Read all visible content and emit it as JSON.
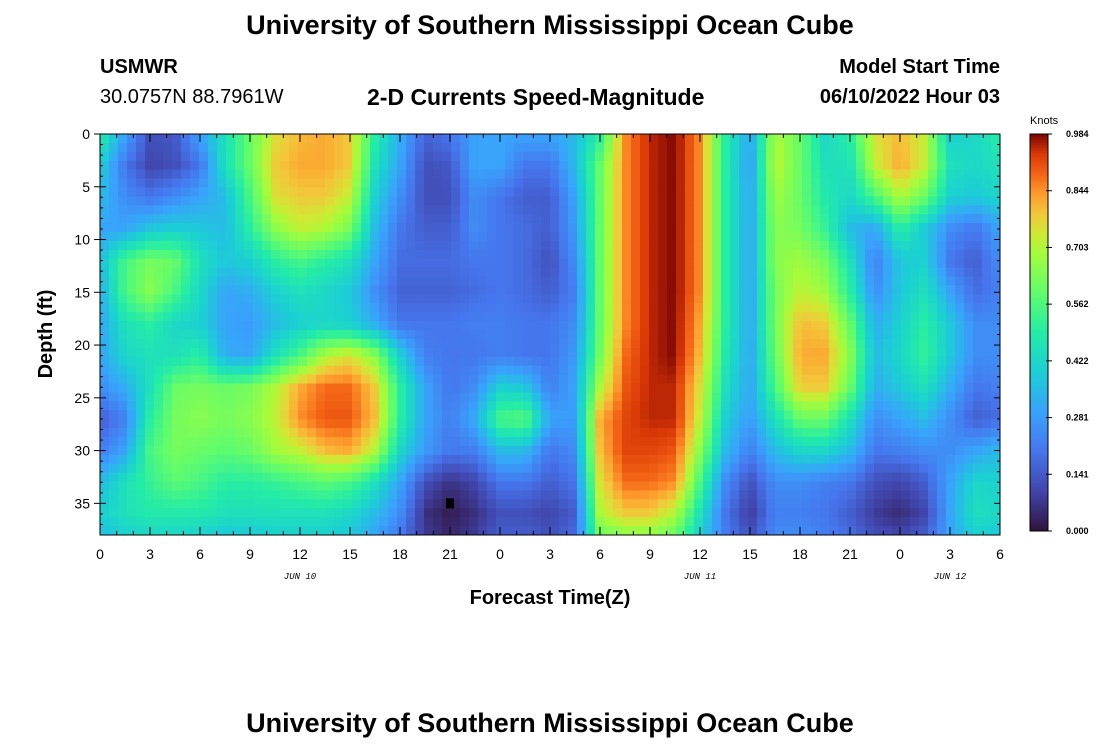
{
  "header": {
    "title": "University of Southern Mississippi Ocean Cube",
    "station": "USMWR",
    "coordinates": "30.0757N  88.7961W",
    "plot_title": "2-D Currents Speed-Magnitude",
    "model_label": "Model Start Time",
    "model_time": "06/10/2022 Hour 03"
  },
  "footer": {
    "title": "University of Southern Mississippi Ocean Cube"
  },
  "chart_data": {
    "type": "heatmap",
    "title": "2-D Currents Speed-Magnitude",
    "xlabel": "Forecast Time(Z)",
    "ylabel": "Depth (ft)",
    "x_hours_range": [
      0,
      54
    ],
    "x_tick_hours": [
      0,
      3,
      6,
      9,
      12,
      15,
      18,
      21,
      24,
      27,
      30,
      33,
      36,
      39,
      42,
      45,
      48,
      51,
      54
    ],
    "x_tick_labels": [
      "0",
      "3",
      "6",
      "9",
      "12",
      "15",
      "18",
      "21",
      "0",
      "3",
      "6",
      "9",
      "12",
      "15",
      "18",
      "21",
      "0",
      "3",
      "6"
    ],
    "date_labels": [
      {
        "text": "JUN 10",
        "hour": 12
      },
      {
        "text": "JUN 11",
        "hour": 36
      },
      {
        "text": "JUN 12",
        "hour": 51
      }
    ],
    "y_range": [
      0,
      38
    ],
    "y_inverted": true,
    "y_ticks": [
      0,
      5,
      10,
      15,
      20,
      25,
      30,
      35
    ],
    "y_tick_labels": [
      "0",
      "5",
      "10",
      "15",
      "20",
      "25",
      "30",
      "35"
    ],
    "colorbar": {
      "unit": "Knots",
      "min": 0.0,
      "max": 0.984,
      "tick_labels": [
        "0.000",
        "0.141",
        "0.281",
        "0.422",
        "0.562",
        "0.703",
        "0.844",
        "0.984"
      ]
    },
    "field": {
      "columns_hour": [
        0,
        1.5,
        3,
        4.5,
        6,
        7.5,
        9,
        10.5,
        12,
        13.5,
        15,
        16.5,
        18,
        19.5,
        21,
        22.5,
        24,
        25.5,
        27,
        28.5,
        30,
        31.5,
        33,
        34.5,
        36,
        37.5,
        39,
        40.5,
        42,
        43.5,
        45,
        46.5,
        48,
        49.5,
        51,
        52.5,
        54
      ],
      "rows_depth": [
        0,
        3,
        6,
        9,
        12,
        15,
        18,
        21,
        24,
        27,
        30,
        33,
        36,
        38
      ],
      "speed_knots": [
        [
          0.5,
          0.3,
          0.12,
          0.14,
          0.3,
          0.45,
          0.6,
          0.75,
          0.8,
          0.82,
          0.78,
          0.5,
          0.32,
          0.16,
          0.2,
          0.3,
          0.3,
          0.3,
          0.3,
          0.35,
          0.5,
          0.85,
          0.95,
          0.98,
          0.85,
          0.5,
          0.3,
          0.7,
          0.6,
          0.42,
          0.5,
          0.75,
          0.8,
          0.72,
          0.4,
          0.42,
          0.5
        ],
        [
          0.4,
          0.2,
          0.1,
          0.12,
          0.2,
          0.45,
          0.6,
          0.78,
          0.82,
          0.82,
          0.78,
          0.45,
          0.3,
          0.12,
          0.14,
          0.3,
          0.3,
          0.2,
          0.2,
          0.35,
          0.6,
          0.85,
          0.95,
          0.98,
          0.85,
          0.5,
          0.28,
          0.72,
          0.6,
          0.45,
          0.45,
          0.72,
          0.82,
          0.72,
          0.45,
          0.42,
          0.45
        ],
        [
          0.35,
          0.25,
          0.2,
          0.25,
          0.3,
          0.35,
          0.55,
          0.75,
          0.78,
          0.78,
          0.72,
          0.4,
          0.25,
          0.12,
          0.12,
          0.25,
          0.2,
          0.15,
          0.15,
          0.3,
          0.6,
          0.85,
          0.95,
          0.98,
          0.85,
          0.5,
          0.3,
          0.68,
          0.6,
          0.48,
          0.42,
          0.55,
          0.7,
          0.6,
          0.4,
          0.38,
          0.42
        ],
        [
          0.3,
          0.3,
          0.38,
          0.4,
          0.38,
          0.35,
          0.5,
          0.65,
          0.72,
          0.7,
          0.62,
          0.35,
          0.2,
          0.15,
          0.15,
          0.25,
          0.2,
          0.18,
          0.15,
          0.28,
          0.6,
          0.85,
          0.95,
          0.98,
          0.85,
          0.5,
          0.3,
          0.65,
          0.62,
          0.52,
          0.35,
          0.3,
          0.5,
          0.38,
          0.25,
          0.2,
          0.3
        ],
        [
          0.35,
          0.55,
          0.62,
          0.6,
          0.45,
          0.38,
          0.4,
          0.5,
          0.55,
          0.5,
          0.45,
          0.3,
          0.18,
          0.18,
          0.18,
          0.2,
          0.2,
          0.18,
          0.12,
          0.25,
          0.6,
          0.85,
          0.95,
          0.98,
          0.85,
          0.5,
          0.3,
          0.65,
          0.68,
          0.62,
          0.45,
          0.22,
          0.38,
          0.4,
          0.2,
          0.15,
          0.25
        ],
        [
          0.32,
          0.55,
          0.65,
          0.55,
          0.42,
          0.3,
          0.32,
          0.4,
          0.45,
          0.42,
          0.38,
          0.25,
          0.16,
          0.16,
          0.16,
          0.18,
          0.2,
          0.18,
          0.15,
          0.22,
          0.6,
          0.85,
          0.95,
          0.98,
          0.85,
          0.5,
          0.3,
          0.62,
          0.72,
          0.68,
          0.5,
          0.25,
          0.38,
          0.45,
          0.3,
          0.18,
          0.22
        ],
        [
          0.3,
          0.45,
          0.5,
          0.42,
          0.4,
          0.3,
          0.28,
          0.35,
          0.4,
          0.42,
          0.4,
          0.32,
          0.2,
          0.2,
          0.2,
          0.22,
          0.22,
          0.2,
          0.2,
          0.25,
          0.6,
          0.85,
          0.95,
          0.98,
          0.82,
          0.5,
          0.3,
          0.62,
          0.8,
          0.78,
          0.6,
          0.32,
          0.4,
          0.5,
          0.38,
          0.25,
          0.25
        ],
        [
          0.3,
          0.42,
          0.45,
          0.45,
          0.5,
          0.32,
          0.3,
          0.45,
          0.55,
          0.7,
          0.75,
          0.65,
          0.4,
          0.22,
          0.2,
          0.2,
          0.22,
          0.2,
          0.2,
          0.28,
          0.62,
          0.88,
          0.95,
          0.98,
          0.8,
          0.48,
          0.3,
          0.6,
          0.82,
          0.82,
          0.65,
          0.35,
          0.42,
          0.52,
          0.38,
          0.25,
          0.25
        ],
        [
          0.25,
          0.32,
          0.45,
          0.6,
          0.62,
          0.6,
          0.62,
          0.7,
          0.82,
          0.88,
          0.88,
          0.78,
          0.5,
          0.3,
          0.2,
          0.25,
          0.4,
          0.38,
          0.22,
          0.3,
          0.7,
          0.9,
          0.95,
          0.95,
          0.75,
          0.45,
          0.3,
          0.55,
          0.78,
          0.78,
          0.6,
          0.32,
          0.38,
          0.45,
          0.32,
          0.2,
          0.22
        ],
        [
          0.15,
          0.22,
          0.5,
          0.62,
          0.65,
          0.62,
          0.65,
          0.72,
          0.85,
          0.9,
          0.9,
          0.8,
          0.5,
          0.3,
          0.22,
          0.32,
          0.55,
          0.58,
          0.3,
          0.28,
          0.82,
          0.92,
          0.95,
          0.95,
          0.72,
          0.4,
          0.28,
          0.45,
          0.6,
          0.6,
          0.45,
          0.25,
          0.3,
          0.35,
          0.25,
          0.15,
          0.18
        ],
        [
          0.22,
          0.3,
          0.55,
          0.62,
          0.6,
          0.58,
          0.6,
          0.68,
          0.72,
          0.8,
          0.82,
          0.7,
          0.42,
          0.28,
          0.2,
          0.22,
          0.35,
          0.35,
          0.2,
          0.25,
          0.8,
          0.92,
          0.92,
          0.9,
          0.65,
          0.35,
          0.22,
          0.35,
          0.42,
          0.42,
          0.35,
          0.2,
          0.22,
          0.25,
          0.25,
          0.3,
          0.35
        ],
        [
          0.35,
          0.45,
          0.52,
          0.58,
          0.55,
          0.5,
          0.5,
          0.52,
          0.55,
          0.58,
          0.55,
          0.45,
          0.3,
          0.12,
          0.06,
          0.1,
          0.2,
          0.2,
          0.15,
          0.2,
          0.75,
          0.88,
          0.88,
          0.85,
          0.55,
          0.25,
          0.12,
          0.25,
          0.25,
          0.22,
          0.2,
          0.12,
          0.1,
          0.15,
          0.3,
          0.42,
          0.4
        ],
        [
          0.4,
          0.45,
          0.48,
          0.48,
          0.48,
          0.45,
          0.45,
          0.45,
          0.45,
          0.45,
          0.42,
          0.35,
          0.25,
          0.06,
          0.02,
          0.06,
          0.12,
          0.12,
          0.1,
          0.15,
          0.7,
          0.78,
          0.78,
          0.7,
          0.45,
          0.2,
          0.08,
          0.22,
          0.22,
          0.2,
          0.15,
          0.08,
          0.05,
          0.1,
          0.3,
          0.45,
          0.42
        ],
        [
          0.35,
          0.4,
          0.42,
          0.42,
          0.4,
          0.38,
          0.38,
          0.4,
          0.4,
          0.4,
          0.38,
          0.3,
          0.2,
          0.08,
          0.04,
          0.08,
          0.15,
          0.15,
          0.12,
          0.18,
          0.6,
          0.65,
          0.65,
          0.6,
          0.4,
          0.22,
          0.12,
          0.25,
          0.25,
          0.22,
          0.18,
          0.12,
          0.1,
          0.15,
          0.3,
          0.4,
          0.38
        ]
      ],
      "marker": {
        "hour": 21,
        "depth": 35
      }
    }
  }
}
